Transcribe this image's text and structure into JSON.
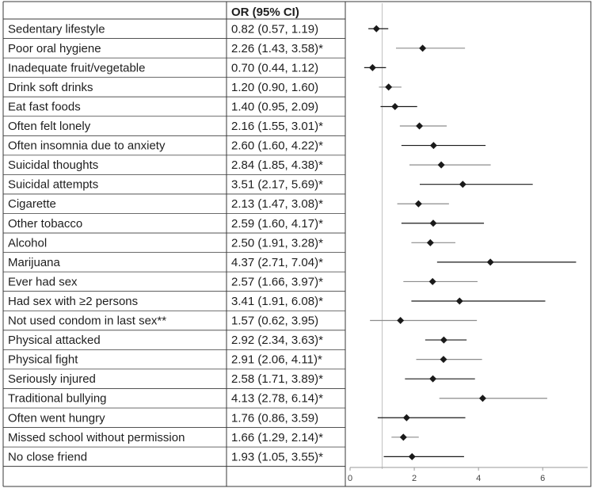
{
  "chart_data": {
    "type": "forest",
    "column_header": "OR (95% CI)",
    "x_ticks": [
      0,
      2,
      4,
      6
    ],
    "xlim": [
      0,
      7.4
    ],
    "reference_line": 1,
    "rows": [
      {
        "label": "Sedentary lifestyle",
        "or_text": "0.82 (0.57, 1.19)",
        "or": 0.82,
        "lo": 0.57,
        "hi": 1.19
      },
      {
        "label": "Poor oral hygiene",
        "or_text": "2.26 (1.43, 3.58)*",
        "or": 2.26,
        "lo": 1.43,
        "hi": 3.58
      },
      {
        "label": "Inadequate fruit/vegetable",
        "or_text": "0.70 (0.44, 1.12)",
        "or": 0.7,
        "lo": 0.44,
        "hi": 1.12
      },
      {
        "label": "Drink soft drinks",
        "or_text": "1.20 (0.90, 1.60)",
        "or": 1.2,
        "lo": 0.9,
        "hi": 1.6
      },
      {
        "label": "Eat fast foods",
        "or_text": "1.40 (0.95, 2.09)",
        "or": 1.4,
        "lo": 0.95,
        "hi": 2.09
      },
      {
        "label": "Often felt lonely",
        "or_text": "2.16 (1.55, 3.01)*",
        "or": 2.16,
        "lo": 1.55,
        "hi": 3.01
      },
      {
        "label": "Often insomnia due to anxiety",
        "or_text": "2.60 (1.60, 4.22)*",
        "or": 2.6,
        "lo": 1.6,
        "hi": 4.22
      },
      {
        "label": "Suicidal thoughts",
        "or_text": "2.84 (1.85, 4.38)*",
        "or": 2.84,
        "lo": 1.85,
        "hi": 4.38
      },
      {
        "label": "Suicidal attempts",
        "or_text": "3.51 (2.17, 5.69)*",
        "or": 3.51,
        "lo": 2.17,
        "hi": 5.69
      },
      {
        "label": "Cigarette",
        "or_text": "2.13 (1.47, 3.08)*",
        "or": 2.13,
        "lo": 1.47,
        "hi": 3.08
      },
      {
        "label": "Other tobacco",
        "or_text": "2.59 (1.60, 4.17)*",
        "or": 2.59,
        "lo": 1.6,
        "hi": 4.17
      },
      {
        "label": "Alcohol",
        "or_text": "2.50 (1.91, 3.28)*",
        "or": 2.5,
        "lo": 1.91,
        "hi": 3.28
      },
      {
        "label": "Marijuana",
        "or_text": "4.37 (2.71, 7.04)*",
        "or": 4.37,
        "lo": 2.71,
        "hi": 7.04
      },
      {
        "label": "Ever had sex",
        "or_text": "2.57 (1.66, 3.97)*",
        "or": 2.57,
        "lo": 1.66,
        "hi": 3.97
      },
      {
        "label": "Had sex with ≥2 persons",
        "or_text": "3.41 (1.91, 6.08)*",
        "or": 3.41,
        "lo": 1.91,
        "hi": 6.08
      },
      {
        "label": "Not used condom in last sex**",
        "or_text": "1.57 (0.62, 3.95)",
        "or": 1.57,
        "lo": 0.62,
        "hi": 3.95
      },
      {
        "label": "Physical attacked",
        "or_text": "2.92 (2.34, 3.63)*",
        "or": 2.92,
        "lo": 2.34,
        "hi": 3.63
      },
      {
        "label": "Physical fight",
        "or_text": "2.91 (2.06, 4.11)*",
        "or": 2.91,
        "lo": 2.06,
        "hi": 4.11
      },
      {
        "label": "Seriously injured",
        "or_text": "2.58 (1.71, 3.89)*",
        "or": 2.58,
        "lo": 1.71,
        "hi": 3.89
      },
      {
        "label": "Traditional bullying",
        "or_text": "4.13 (2.78, 6.14)*",
        "or": 4.13,
        "lo": 2.78,
        "hi": 6.14
      },
      {
        "label": "Often went hungry",
        "or_text": "1.76 (0.86, 3.59)",
        "or": 1.76,
        "lo": 0.86,
        "hi": 3.59
      },
      {
        "label": "Missed school without permission",
        "or_text": "1.66 (1.29, 2.14)*",
        "or": 1.66,
        "lo": 1.29,
        "hi": 2.14
      },
      {
        "label": "No close friend",
        "or_text": "1.93 (1.05, 3.55)*",
        "or": 1.93,
        "lo": 1.05,
        "hi": 3.55
      }
    ],
    "colors": {
      "marker": "#1a1a1a",
      "ci_dark": "#1a1a1a",
      "ci_light": "#8c8c8c",
      "reference_line": "#c8c8c8",
      "border": "#3a3a3a"
    }
  }
}
